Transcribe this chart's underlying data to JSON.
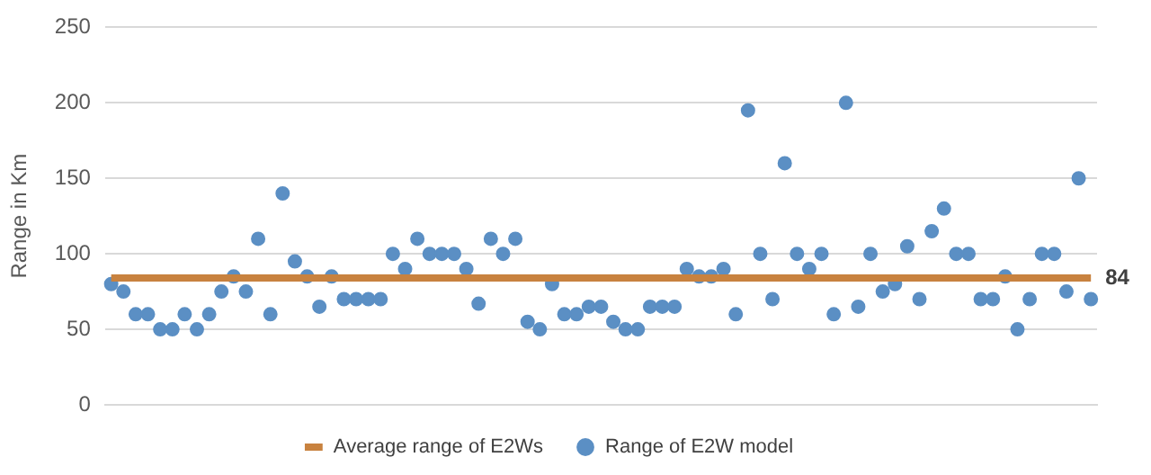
{
  "chart_data": {
    "type": "scatter",
    "ylabel": "Range in Km",
    "categories": [
      null,
      null,
      null,
      null,
      null,
      null,
      null,
      null,
      null,
      null,
      null,
      null,
      null,
      null,
      null,
      null,
      null,
      null,
      null,
      null,
      null,
      null,
      null,
      null,
      null,
      null,
      null,
      null,
      null,
      null,
      null,
      null,
      null,
      null,
      null,
      null,
      null,
      null,
      null,
      null,
      null,
      null,
      null,
      null,
      null,
      null,
      null,
      null,
      null,
      null,
      null,
      null,
      null,
      null,
      null,
      null,
      null,
      null,
      null,
      null,
      null,
      null,
      null,
      null,
      null,
      null,
      null,
      null,
      null,
      null,
      null,
      null,
      null,
      null,
      null,
      null,
      null,
      null,
      null,
      null,
      null
    ],
    "series": [
      {
        "name": "Average range of E2Ws",
        "type": "line",
        "color": "#c8823f",
        "marker": "none",
        "values": [
          84,
          84,
          84,
          84,
          84,
          84,
          84,
          84,
          84,
          84,
          84,
          84,
          84,
          84,
          84,
          84,
          84,
          84,
          84,
          84,
          84,
          84,
          84,
          84,
          84,
          84,
          84,
          84,
          84,
          84,
          84,
          84,
          84,
          84,
          84,
          84,
          84,
          84,
          84,
          84,
          84,
          84,
          84,
          84,
          84,
          84,
          84,
          84,
          84,
          84,
          84,
          84,
          84,
          84,
          84,
          84,
          84,
          84,
          84,
          84,
          84,
          84,
          84,
          84,
          84,
          84,
          84,
          84,
          84,
          84,
          84,
          84,
          84,
          84,
          84,
          84,
          84,
          84,
          84,
          84,
          84
        ],
        "value_labels": [
          null,
          null,
          null,
          null,
          null,
          null,
          null,
          null,
          null,
          null,
          null,
          null,
          null,
          null,
          null,
          null,
          null,
          null,
          null,
          null,
          null,
          null,
          null,
          null,
          null,
          null,
          null,
          null,
          null,
          null,
          null,
          null,
          null,
          null,
          null,
          null,
          null,
          null,
          null,
          null,
          null,
          null,
          null,
          null,
          null,
          null,
          null,
          null,
          null,
          null,
          null,
          null,
          null,
          null,
          null,
          null,
          null,
          null,
          null,
          null,
          null,
          null,
          null,
          null,
          null,
          null,
          null,
          null,
          null,
          null,
          null,
          null,
          null,
          null,
          null,
          null,
          null,
          null,
          null,
          null,
          "84"
        ]
      },
      {
        "name": "Range of E2W model",
        "color": "#5b8fc4",
        "marker": "circle",
        "values": [
          80,
          75,
          60,
          60,
          50,
          50,
          60,
          50,
          60,
          75,
          85,
          75,
          110,
          60,
          140,
          95,
          85,
          65,
          85,
          70,
          70,
          70,
          70,
          100,
          90,
          110,
          100,
          100,
          100,
          90,
          67,
          110,
          100,
          110,
          55,
          50,
          80,
          60,
          60,
          65,
          65,
          55,
          50,
          50,
          65,
          65,
          65,
          90,
          85,
          85,
          90,
          60,
          195,
          100,
          70,
          160,
          100,
          90,
          100,
          60,
          200,
          65,
          100,
          75,
          80,
          105,
          70,
          115,
          130,
          100,
          100,
          70,
          70,
          85,
          50,
          70,
          100,
          100,
          75,
          150,
          70
        ]
      }
    ],
    "ylim": [
      0,
      250
    ],
    "yticks": [
      0,
      50,
      100,
      150,
      200,
      250
    ],
    "grid": "y",
    "legend": "bottom",
    "tick_labels": "y"
  }
}
